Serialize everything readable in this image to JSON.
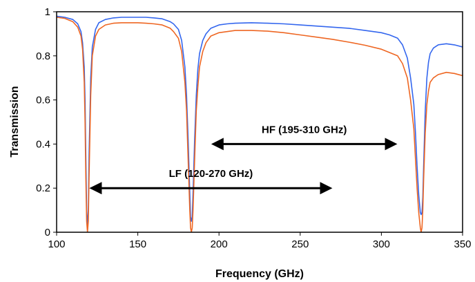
{
  "chart_data": {
    "type": "line",
    "title": "",
    "xlabel": "Frequency (GHz)",
    "ylabel": "Transmission",
    "xlim": [
      100,
      350
    ],
    "ylim": [
      0,
      1
    ],
    "x_ticks": [
      "100",
      "150",
      "200",
      "250",
      "300",
      "350"
    ],
    "y_ticks": [
      "0",
      "0.2",
      "0.4",
      "0.6",
      "0.8",
      "1"
    ],
    "grid": false,
    "series": [
      {
        "color": "#3366ee",
        "x": [
          100,
          105,
          110,
          113,
          115,
          116,
          117,
          117.5,
          118,
          118.5,
          119,
          119.5,
          120,
          121,
          122,
          124,
          126,
          130,
          135,
          140,
          145,
          150,
          155,
          160,
          165,
          170,
          172,
          175,
          177,
          179,
          180,
          181,
          182,
          182.5,
          183,
          183.5,
          184,
          185,
          186,
          187,
          188,
          190,
          192,
          195,
          200,
          205,
          210,
          220,
          230,
          240,
          250,
          260,
          270,
          280,
          290,
          300,
          305,
          310,
          313,
          316,
          318,
          320,
          321,
          322,
          323,
          324,
          324.5,
          325,
          325.5,
          326,
          327,
          328,
          329,
          330,
          332,
          335,
          340,
          345,
          350
        ],
        "y": [
          0.98,
          0.975,
          0.965,
          0.945,
          0.91,
          0.86,
          0.75,
          0.6,
          0.35,
          0.1,
          0.02,
          0.1,
          0.35,
          0.7,
          0.84,
          0.92,
          0.95,
          0.965,
          0.972,
          0.975,
          0.975,
          0.975,
          0.975,
          0.972,
          0.968,
          0.955,
          0.945,
          0.92,
          0.87,
          0.75,
          0.62,
          0.42,
          0.18,
          0.07,
          0.05,
          0.07,
          0.18,
          0.42,
          0.62,
          0.74,
          0.81,
          0.87,
          0.9,
          0.925,
          0.94,
          0.945,
          0.948,
          0.95,
          0.948,
          0.945,
          0.94,
          0.935,
          0.93,
          0.925,
          0.915,
          0.905,
          0.895,
          0.88,
          0.85,
          0.79,
          0.7,
          0.58,
          0.45,
          0.3,
          0.17,
          0.09,
          0.08,
          0.09,
          0.16,
          0.3,
          0.55,
          0.7,
          0.77,
          0.81,
          0.835,
          0.85,
          0.855,
          0.85,
          0.84
        ]
      },
      {
        "color": "#ee6622",
        "x": [
          100,
          105,
          110,
          113,
          115,
          116,
          117,
          117.5,
          118,
          118.5,
          119,
          119.5,
          120,
          121,
          122,
          124,
          126,
          130,
          135,
          140,
          145,
          150,
          155,
          160,
          165,
          170,
          172,
          175,
          177,
          179,
          180,
          181,
          182,
          182.5,
          183,
          183.5,
          184,
          185,
          186,
          187,
          188,
          190,
          192,
          195,
          200,
          205,
          210,
          220,
          230,
          240,
          250,
          260,
          270,
          280,
          290,
          300,
          305,
          310,
          313,
          316,
          318,
          320,
          321,
          322,
          323,
          324,
          324.5,
          325,
          325.5,
          326,
          327,
          328,
          329,
          330,
          332,
          335,
          340,
          345,
          350
        ],
        "y": [
          0.975,
          0.97,
          0.955,
          0.93,
          0.89,
          0.83,
          0.68,
          0.5,
          0.25,
          0.05,
          0.0,
          0.05,
          0.25,
          0.62,
          0.8,
          0.89,
          0.92,
          0.94,
          0.948,
          0.95,
          0.95,
          0.95,
          0.948,
          0.945,
          0.94,
          0.925,
          0.91,
          0.88,
          0.82,
          0.68,
          0.55,
          0.33,
          0.1,
          0.02,
          0.0,
          0.02,
          0.1,
          0.33,
          0.55,
          0.66,
          0.75,
          0.82,
          0.86,
          0.89,
          0.905,
          0.91,
          0.915,
          0.915,
          0.912,
          0.905,
          0.895,
          0.885,
          0.875,
          0.862,
          0.848,
          0.83,
          0.815,
          0.8,
          0.765,
          0.7,
          0.6,
          0.47,
          0.33,
          0.2,
          0.09,
          0.02,
          0.0,
          0.02,
          0.1,
          0.24,
          0.45,
          0.58,
          0.64,
          0.68,
          0.7,
          0.715,
          0.725,
          0.72,
          0.71
        ]
      }
    ],
    "annotations": [
      {
        "text": "HF (195-310 GHz)",
        "from": 195,
        "to": 310,
        "y": 0.4
      },
      {
        "text": "LF (120-270 GHz)",
        "from": 120,
        "to": 270,
        "y": 0.2
      }
    ]
  }
}
